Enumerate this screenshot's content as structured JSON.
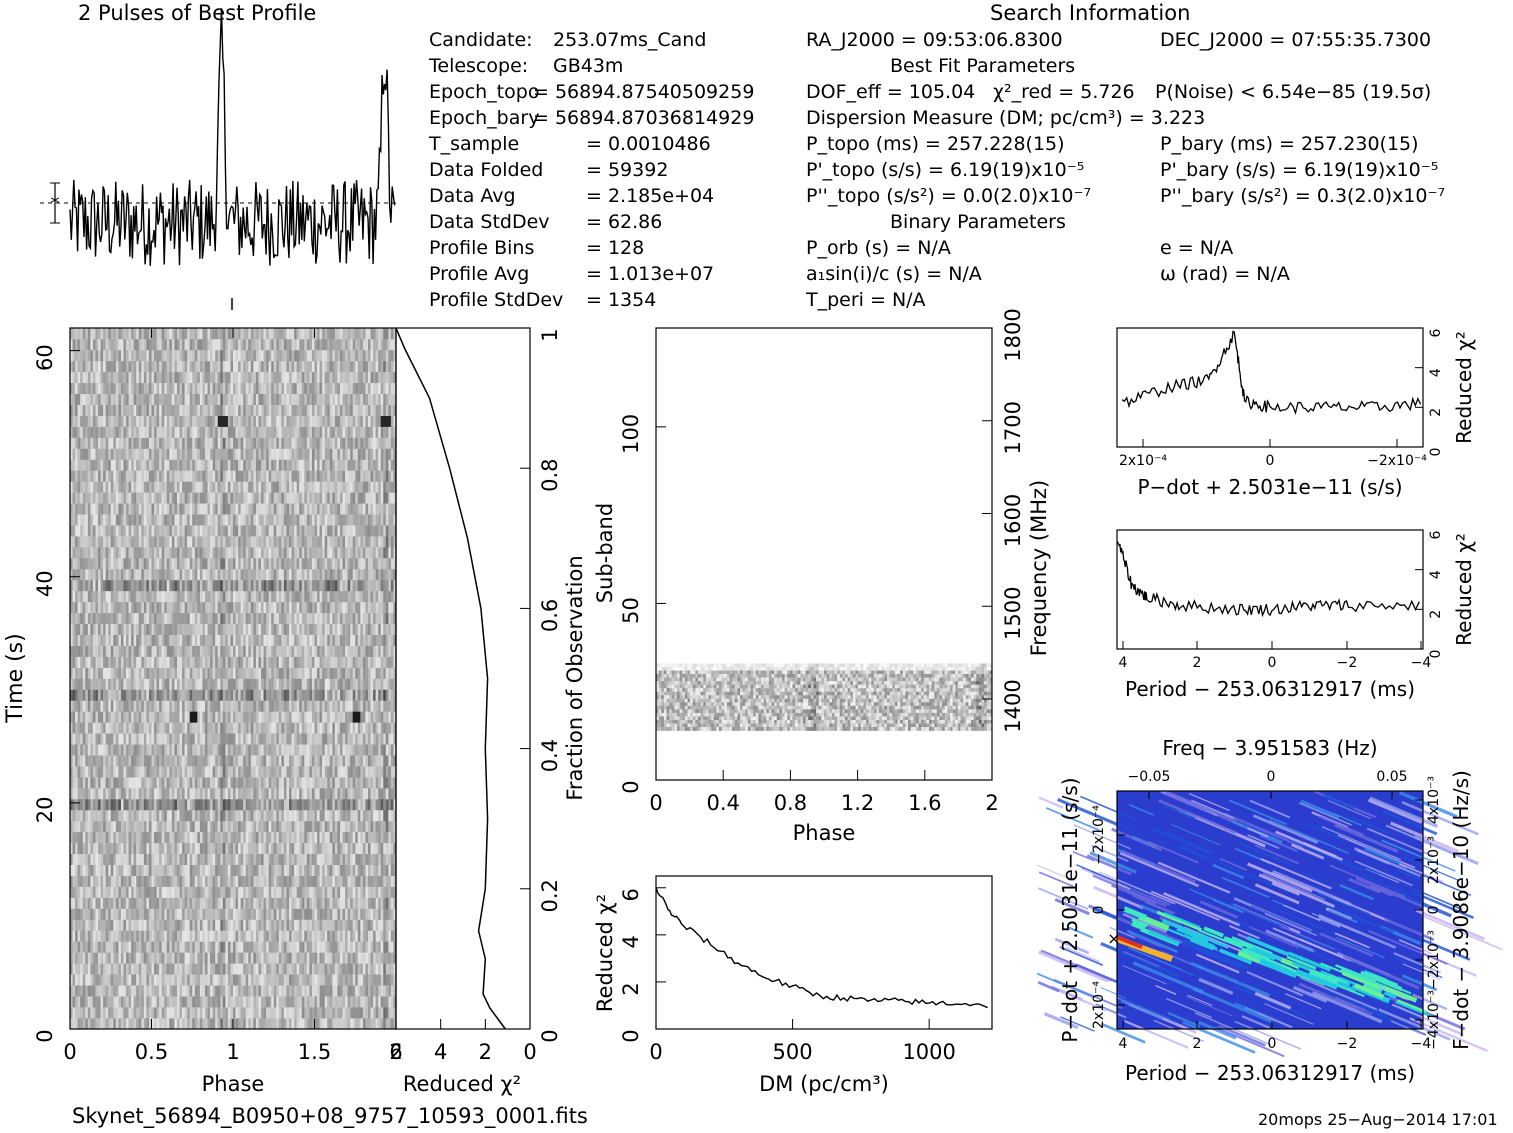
{
  "titles": {
    "profile": "2 Pulses of Best Profile",
    "search": "Search Information",
    "best_fit": "Best Fit Parameters",
    "binary": "Binary Parameters"
  },
  "info_left": [
    {
      "label": "Candidate:",
      "value": "253.07ms_Cand"
    },
    {
      "label": "Telescope:",
      "value": "GB43m"
    },
    {
      "label": "Epoch_topo",
      "value": "= 56894.87540509259"
    },
    {
      "label": "Epoch_bary",
      "value": "= 56894.87036814929"
    },
    {
      "label": "T_sample",
      "value": "= 0.0010486"
    },
    {
      "label": "Data Folded",
      "value": "= 59392"
    },
    {
      "label": "Data Avg",
      "value": "= 2.185e+04"
    },
    {
      "label": "Data StdDev",
      "value": "= 62.86"
    },
    {
      "label": "Profile Bins",
      "value": "= 128"
    },
    {
      "label": "Profile Avg",
      "value": "= 1.013e+07"
    },
    {
      "label": "Profile StdDev",
      "value": "= 1354"
    }
  ],
  "search_info": {
    "ra": "RA_J2000 = 09:53:06.8300",
    "dec": "DEC_J2000 = 07:55:35.7300"
  },
  "best_fit": {
    "dof": "DOF_eff = 105.04",
    "chi2": "χ²_red = 5.726",
    "pnoise": "P(Noise) < 6.54e−85   (19.5σ)",
    "dm": "Dispersion Measure (DM; pc/cm³) = 3.223",
    "p_topo": "P_topo (ms) =  257.228(15)",
    "p_bary": "P_bary (ms) =  257.230(15)",
    "pd_topo": "P'_topo (s/s) =  6.19(19)x10⁻⁵",
    "pd_bary": "P'_bary (s/s) =  6.19(19)x10⁻⁵",
    "pdd_topo": "P''_topo (s/s²) = 0.0(2.0)x10⁻⁷",
    "pdd_bary": "P''_bary (s/s²) =  0.3(2.0)x10⁻⁷"
  },
  "binary": {
    "porb": "P_orb (s) = N/A",
    "a1": "a₁sin(i)/c (s) = N/A",
    "tperi": "T_peri = N/A",
    "e": "e = N/A",
    "omega": "ω (rad) = N/A"
  },
  "footer": {
    "filename": "Skynet_56894_B0950+08_9757_10593_0001.fits",
    "stamp": "20mops 25−Aug−2014 17:01"
  },
  "chart_data": [
    {
      "type": "line",
      "title": "2 Pulses of Best Profile",
      "x": "phase 0–2",
      "peaks_at_phase": [
        0.93,
        1.93
      ],
      "xlim": [
        0,
        2
      ]
    },
    {
      "type": "heatmap",
      "name": "time-phase",
      "xlabel": "Phase",
      "ylabel": "Time (s)",
      "xlim": [
        0,
        2
      ],
      "ylim": [
        0,
        62
      ],
      "x_ticks": [
        "0",
        "0.5",
        "1",
        "1.5",
        "2"
      ],
      "y_ticks": [
        "0",
        "20",
        "40",
        "60"
      ]
    },
    {
      "type": "line",
      "name": "reduced-chi2-vs-fraction",
      "xlabel": "Reduced χ²",
      "ylabel": "Fraction of Observation",
      "xlim": [
        6,
        0
      ],
      "ylim": [
        0,
        1
      ],
      "x_ticks": [
        "6",
        "4",
        "2",
        "0"
      ],
      "y_ticks": [
        "0",
        "0.2",
        "0.4",
        "0.6",
        "0.8",
        "1"
      ],
      "points": [
        [
          1.1,
          0
        ],
        [
          1.8,
          0.03
        ],
        [
          2.1,
          0.05
        ],
        [
          2.0,
          0.1
        ],
        [
          2.3,
          0.14
        ],
        [
          2.0,
          0.2
        ],
        [
          1.9,
          0.3
        ],
        [
          2.0,
          0.4
        ],
        [
          1.9,
          0.5
        ],
        [
          2.2,
          0.6
        ],
        [
          2.8,
          0.7
        ],
        [
          3.6,
          0.8
        ],
        [
          4.5,
          0.9
        ],
        [
          5.6,
          0.97
        ],
        [
          6.0,
          1.0
        ]
      ]
    },
    {
      "type": "heatmap",
      "name": "subband-phase",
      "xlabel": "Phase",
      "ylabel": "Sub-band",
      "y2label": "Frequency (MHz)",
      "xlim": [
        0,
        2
      ],
      "ylim": [
        0,
        128
      ],
      "x_ticks": [
        "0",
        "0.4",
        "0.8",
        "1.2",
        "1.6",
        "2"
      ],
      "y_ticks": [
        "0",
        "50",
        "100"
      ],
      "y2_ticks": [
        "1400",
        "1500",
        "1600",
        "1700",
        "1800"
      ]
    },
    {
      "type": "line",
      "name": "dm-curve",
      "xlabel": "DM (pc/cm³)",
      "ylabel": "Reduced χ²",
      "xlim": [
        0,
        1230
      ],
      "ylim": [
        0,
        6.5
      ],
      "x_ticks": [
        "0",
        "500",
        "1000"
      ],
      "y_ticks": [
        "0",
        "2",
        "4",
        "6"
      ],
      "points": [
        [
          0,
          6.0
        ],
        [
          50,
          5.0
        ],
        [
          100,
          4.4
        ],
        [
          200,
          3.6
        ],
        [
          300,
          2.8
        ],
        [
          400,
          2.2
        ],
        [
          500,
          1.8
        ],
        [
          600,
          1.4
        ],
        [
          700,
          1.3
        ],
        [
          800,
          1.2
        ],
        [
          900,
          1.2
        ],
        [
          1000,
          1.1
        ],
        [
          1100,
          1.1
        ],
        [
          1230,
          1.0
        ]
      ]
    },
    {
      "type": "line",
      "name": "pdot-curve",
      "xlabel": "P−dot + 2.5031e−11 (s/s)",
      "ylabel": "Reduced χ²",
      "ylim": [
        0,
        6
      ],
      "x_ticks": [
        "2x10⁻⁴",
        "0",
        "−2x10⁻⁴"
      ],
      "y_ticks": [
        "0",
        "2",
        "4",
        "6"
      ],
      "points": [
        [
          2.9,
          2.2
        ],
        [
          2.0,
          3.0
        ],
        [
          1.2,
          3.4
        ],
        [
          0.7,
          5.7
        ],
        [
          0.5,
          2.3
        ],
        [
          0,
          2.0
        ],
        [
          -1,
          2.0
        ],
        [
          -2,
          2.0
        ],
        [
          -3,
          2.2
        ]
      ]
    },
    {
      "type": "line",
      "name": "period-curve",
      "xlabel": "Period − 253.06312917 (ms)",
      "ylabel": "Reduced χ²",
      "xlim": [
        4,
        -4
      ],
      "ylim": [
        0,
        6
      ],
      "x_ticks": [
        "4",
        "2",
        "0",
        "−2",
        "−4"
      ],
      "y_ticks": [
        "0",
        "2",
        "4",
        "6"
      ],
      "points": [
        [
          4.2,
          5.6
        ],
        [
          3.8,
          3.2
        ],
        [
          3.4,
          2.6
        ],
        [
          2.5,
          2.2
        ],
        [
          1,
          2.0
        ],
        [
          0,
          2.0
        ],
        [
          -1,
          2.2
        ],
        [
          -2,
          2.2
        ],
        [
          -4,
          2.2
        ]
      ]
    },
    {
      "type": "heatmap",
      "name": "p-pdot-plane",
      "title": "Freq − 3.951583 (Hz)",
      "xlabel": "Period − 253.06312917 (ms)",
      "ylabel": "P−dot + 2.5031e−11 (s/s)",
      "y2label": "F−dot − 3.9086e−10 (Hz/s)",
      "x_ticks": [
        "4",
        "2",
        "0",
        "−2",
        "−4"
      ],
      "top_ticks": [
        "−0.05",
        "0",
        "0.05"
      ],
      "y_ticks": [
        "−2x10⁻⁴",
        "0",
        "2x10⁻⁴"
      ],
      "y2_ticks": [
        "4x10⁻³",
        "2x10⁻³",
        "0",
        "−2x10⁻³",
        "−4x10⁻³"
      ]
    }
  ]
}
